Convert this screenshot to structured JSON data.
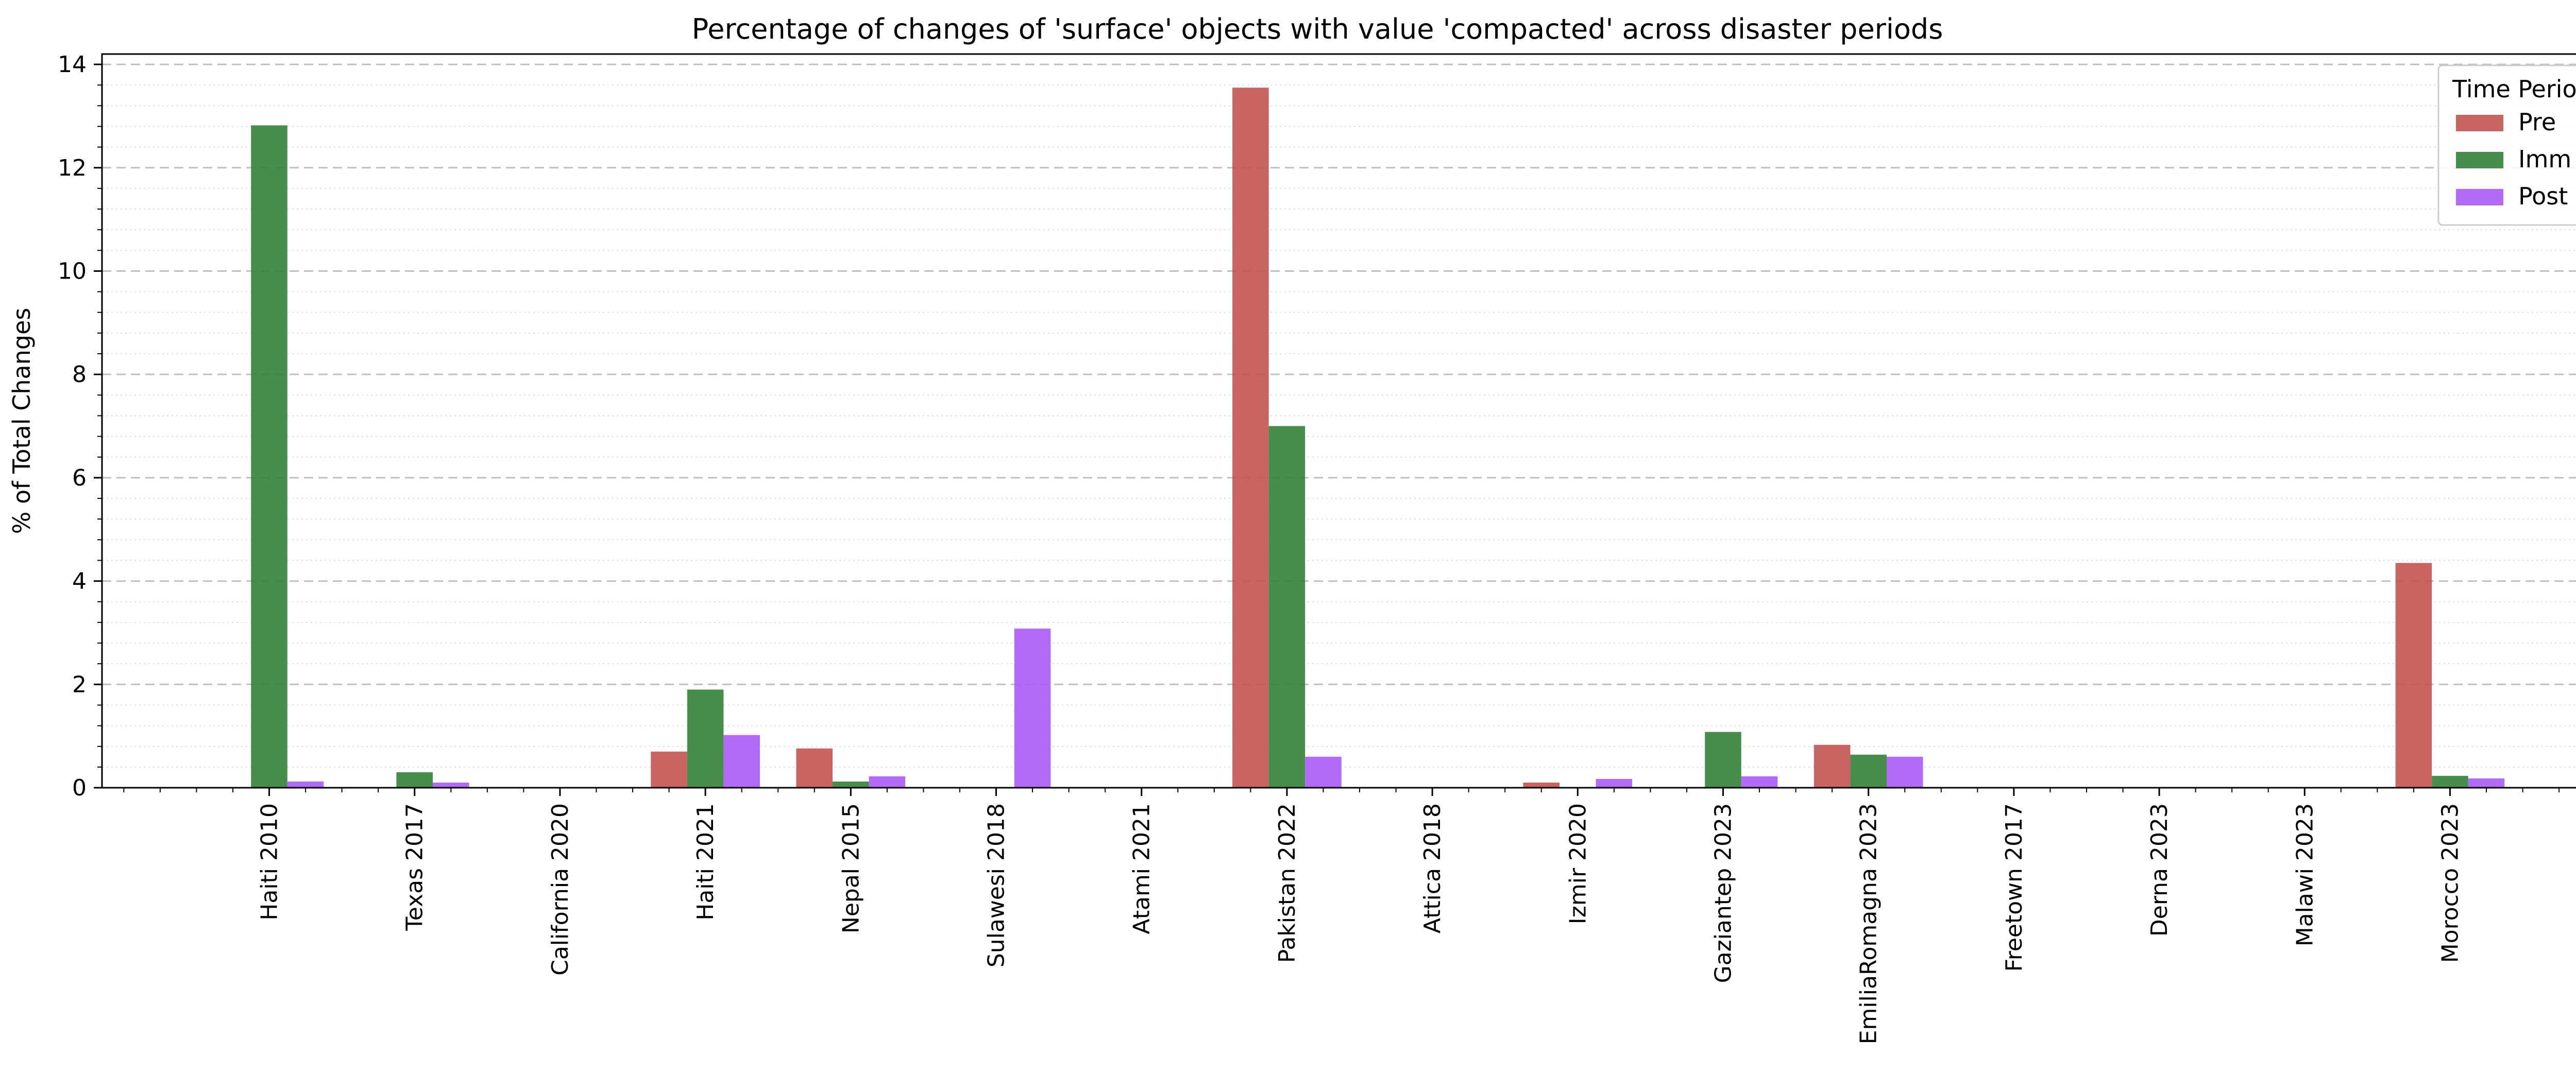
{
  "chart_data": {
    "type": "bar",
    "title": "Percentage of changes of 'surface' objects with value 'compacted' across disaster periods",
    "xlabel": "",
    "ylabel": "% of Total Changes",
    "ylim": [
      0,
      14.2
    ],
    "yticks": [
      0,
      2,
      4,
      6,
      8,
      10,
      12,
      14
    ],
    "grid": "horizontal dashed (major) and dotted (minor)",
    "categories": [
      "Haiti 2010",
      "Texas 2017",
      "California 2020",
      "Haiti 2021",
      "Nepal 2015",
      "Sulawesi 2018",
      "Atami 2021",
      "Pakistan 2022",
      "Attica 2018",
      "Izmir 2020",
      "Gaziantep 2023",
      "EmiliaRomagna 2023",
      "Freetown 2017",
      "Derna 2023",
      "Malawi 2023",
      "Morocco 2023"
    ],
    "series": [
      {
        "name": "Pre",
        "color": "#c0504d",
        "values": [
          0,
          0,
          0,
          0.7,
          0.76,
          0,
          0,
          13.55,
          0,
          0.1,
          0,
          0.83,
          0,
          0,
          0,
          4.35
        ]
      },
      {
        "name": "Imm",
        "color": "#2e7d32",
        "values": [
          12.82,
          0.3,
          0,
          1.9,
          0.12,
          0,
          0,
          7.0,
          0,
          0,
          1.08,
          0.64,
          0,
          0,
          0,
          0.23
        ]
      },
      {
        "name": "Post",
        "color": "#a855f7",
        "values": [
          0.12,
          0.1,
          0,
          1.02,
          0.22,
          3.08,
          0,
          0.6,
          0,
          0.17,
          0.22,
          0.6,
          0,
          0,
          0,
          0.18
        ]
      }
    ],
    "legend": {
      "title": "Time Period",
      "placement": "top-right"
    }
  }
}
